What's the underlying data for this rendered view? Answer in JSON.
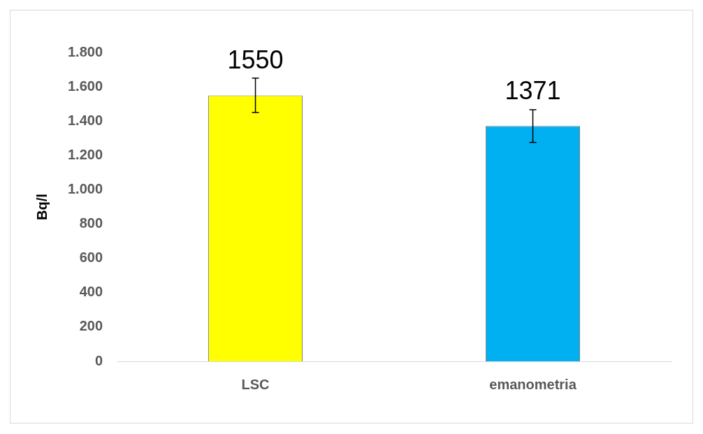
{
  "chart_data": {
    "type": "bar",
    "ylabel": "Bq/l",
    "categories": [
      "LSC",
      "emanometria"
    ],
    "values": [
      1550,
      1371
    ],
    "colors": [
      "#ffff00",
      "#00b0f0"
    ],
    "errors": [
      100,
      95
    ],
    "data_labels": true,
    "ylim": [
      0,
      1800
    ],
    "yticks": [
      {
        "value": 0,
        "label": "0"
      },
      {
        "value": 200,
        "label": "200"
      },
      {
        "value": 400,
        "label": "400"
      },
      {
        "value": 600,
        "label": "600"
      },
      {
        "value": 800,
        "label": "800"
      },
      {
        "value": 1000,
        "label": "1.000"
      },
      {
        "value": 1200,
        "label": "1.200"
      },
      {
        "value": 1400,
        "label": "1.400"
      },
      {
        "value": 1600,
        "label": "1.600"
      },
      {
        "value": 1800,
        "label": "1.800"
      }
    ]
  }
}
